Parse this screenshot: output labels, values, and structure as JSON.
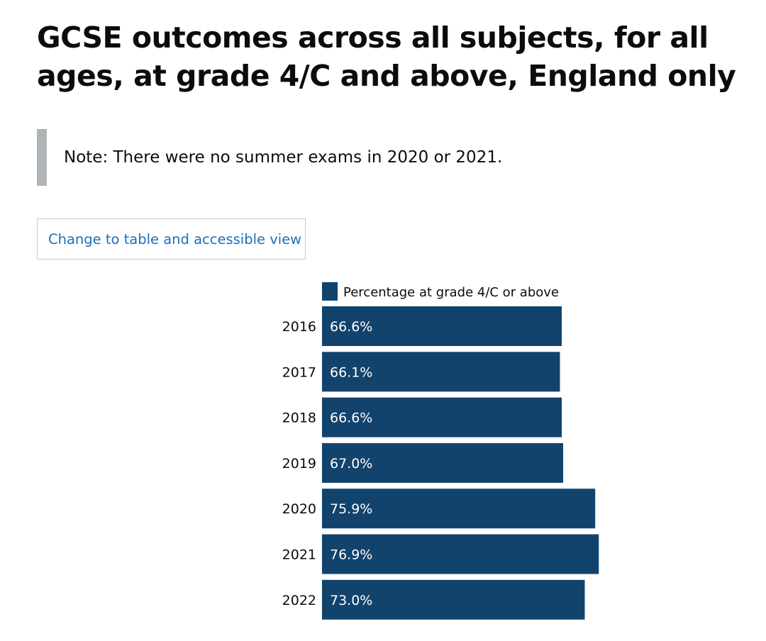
{
  "title": "GCSE outcomes across all subjects, for all ages, at grade 4/C and above, England only",
  "note": "Note: There were no summer exams in 2020 or 2021.",
  "toggle_button": "Change to table and accessible view",
  "colors": {
    "bar": "#12436d",
    "link": "#1d70b8",
    "note_border": "#b1b4b6"
  },
  "chart_data": {
    "type": "bar",
    "orientation": "horizontal",
    "categories": [
      "2016",
      "2017",
      "2018",
      "2019",
      "2020",
      "2021",
      "2022"
    ],
    "series": [
      {
        "name": "Percentage at grade 4/C or above",
        "values": [
          66.6,
          66.1,
          66.6,
          67.0,
          75.9,
          76.9,
          73.0
        ]
      }
    ],
    "data_labels": [
      "66.6%",
      "66.1%",
      "66.6%",
      "67.0%",
      "75.9%",
      "76.9%",
      "73.0%"
    ],
    "legend_placement": "top",
    "grid": false
  }
}
